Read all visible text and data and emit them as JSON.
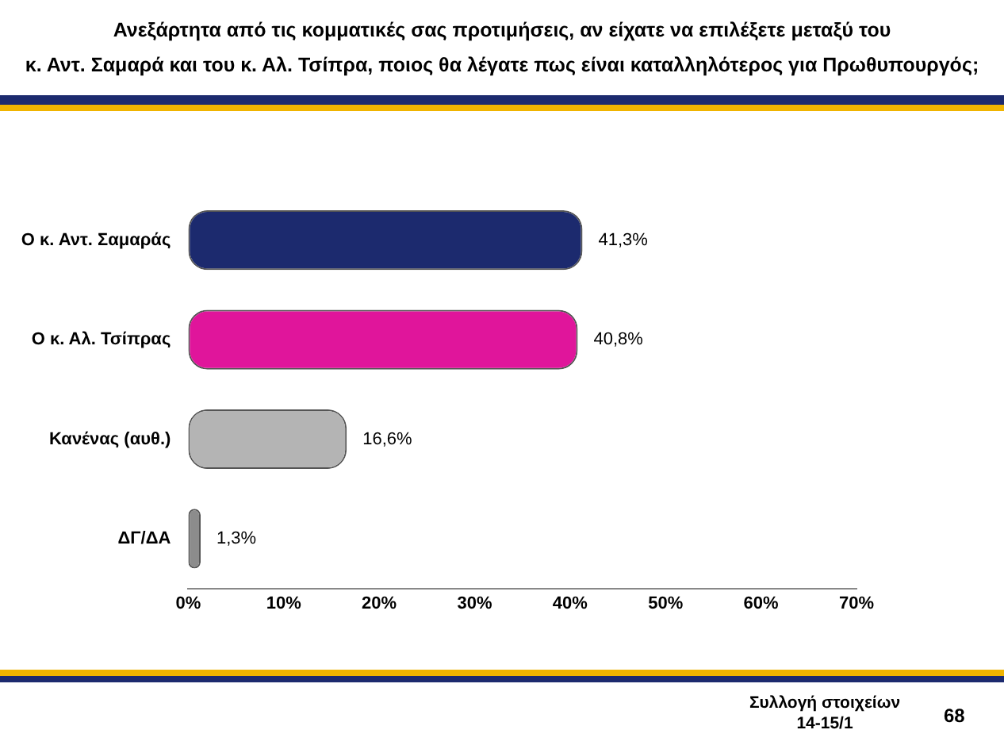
{
  "chart_data": {
    "type": "bar",
    "orientation": "horizontal",
    "title": "Ανεξάρτητα από τις κομματικές σας προτιμήσεις, αν είχατε να επιλέξετε  μεταξύ του\nκ. Αντ. Σαμαρά και του κ. Αλ. Τσίπρα, ποιος θα λέγατε πως είναι καταλληλότερος  για Πρωθυπουργός;",
    "categories": [
      "Ο κ. Αντ. Σαμαράς",
      "Ο κ. Αλ. Τσίπρας",
      "Κανένας (αυθ.)",
      "ΔΓ/ΔΑ"
    ],
    "values": [
      41.3,
      40.8,
      16.6,
      1.3
    ],
    "colors": [
      "#1c2a6e",
      "#e0159b",
      "#b4b4b4",
      "#8c8c8c"
    ],
    "value_labels": [
      "41,3%",
      "40,8%",
      "16,6%",
      "1,3%"
    ],
    "xlim": [
      0,
      70
    ],
    "xticks": [
      {
        "value": 0,
        "label": "0%"
      },
      {
        "value": 10,
        "label": "10%"
      },
      {
        "value": 20,
        "label": "20%"
      },
      {
        "value": 30,
        "label": "30%"
      },
      {
        "value": 40,
        "label": "40%"
      },
      {
        "value": 50,
        "label": "50%"
      },
      {
        "value": 60,
        "label": "60%"
      },
      {
        "value": 70,
        "label": "70%"
      }
    ],
    "grid": false,
    "legend": false,
    "annotations": [
      "Συλλογή στοιχείων\n14-15/1",
      "68"
    ]
  }
}
